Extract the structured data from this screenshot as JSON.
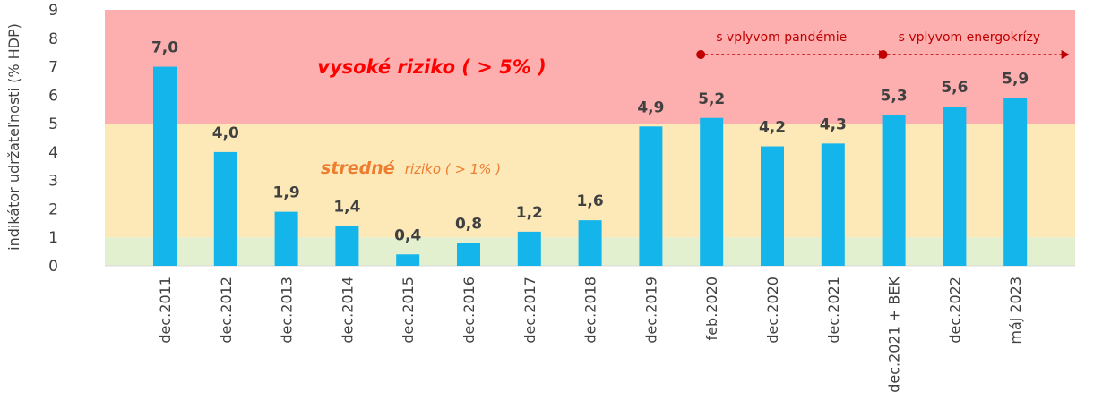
{
  "chart_data": {
    "type": "bar",
    "categories": [
      "dec.2011",
      "dec.2012",
      "dec.2013",
      "dec.2014",
      "dec.2015",
      "dec.2016",
      "dec.2017",
      "dec.2018",
      "dec.2019",
      "feb.2020",
      "dec.2020",
      "dec.2021",
      "dec.2021 + BEK",
      "dec.2022",
      "máj 2023"
    ],
    "values": [
      7.0,
      4.0,
      1.9,
      1.4,
      0.4,
      0.8,
      1.2,
      1.6,
      4.9,
      5.2,
      4.2,
      4.3,
      5.3,
      5.6,
      5.9
    ],
    "value_labels": [
      "7,0",
      "4,0",
      "1,9",
      "1,4",
      "0,4",
      "0,8",
      "1,2",
      "1,6",
      "4,9",
      "5,2",
      "4,2",
      "4,3",
      "5,3",
      "5,6",
      "5,9"
    ],
    "ylabel": "indikátor udržateľnosti (% HDP)",
    "ylim": [
      0,
      9
    ],
    "yticks": [
      "0",
      "1",
      "2",
      "3",
      "4",
      "5",
      "6",
      "7",
      "8",
      "9"
    ],
    "bar_color": "#13b5ea",
    "zones": [
      {
        "from": 0,
        "to": 1,
        "color": "#e3f0d0",
        "label_main": "",
        "label_rest": ""
      },
      {
        "from": 1,
        "to": 5,
        "color": "#fde9b8",
        "label_main": "stredné",
        "label_rest": "riziko ( > 1% )",
        "label_color": "#ed7d31"
      },
      {
        "from": 5,
        "to": 9,
        "color": "#fdaeae",
        "label_main": "vysoké riziko ( > 5% )",
        "label_rest": "",
        "label_color": "#ff0000"
      }
    ],
    "annotations": [
      {
        "text": "s vplyvom pandémie",
        "start_category": "feb.2020",
        "color": "#c00000"
      },
      {
        "text": "s vplyvom energokrízy",
        "start_category": "dec.2021 + BEK",
        "color": "#c00000"
      }
    ],
    "grid": false,
    "legend": "none"
  }
}
